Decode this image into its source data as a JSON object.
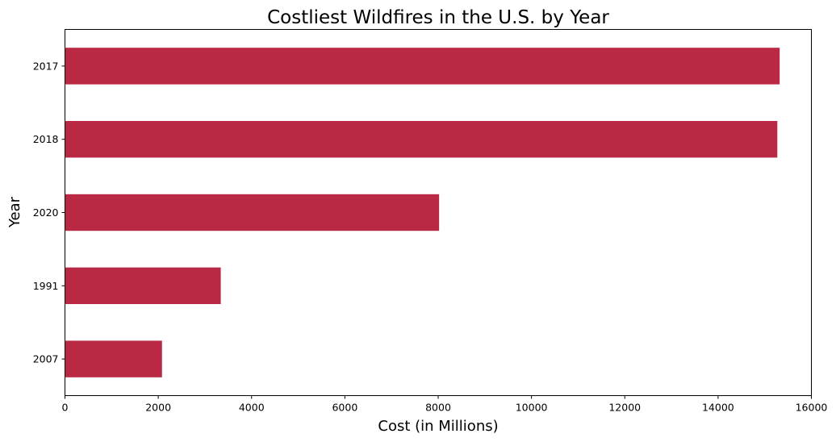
{
  "chart_data": {
    "type": "bar",
    "orientation": "horizontal",
    "title": "Costliest Wildfires in the U.S. by Year",
    "xlabel": "Cost (in Millions)",
    "ylabel": "Year",
    "categories": [
      "2017",
      "2018",
      "2020",
      "1991",
      "2007"
    ],
    "values": [
      15320,
      15270,
      8020,
      3340,
      2080
    ],
    "xlim": [
      0,
      16000
    ],
    "xticks": [
      0,
      2000,
      4000,
      6000,
      8000,
      10000,
      12000,
      14000,
      16000
    ],
    "xtick_labels": [
      "0",
      "2000",
      "4000",
      "6000",
      "8000",
      "10000",
      "12000",
      "14000",
      "16000"
    ],
    "bar_color": "#b92944",
    "grid": false,
    "legend": "none"
  }
}
